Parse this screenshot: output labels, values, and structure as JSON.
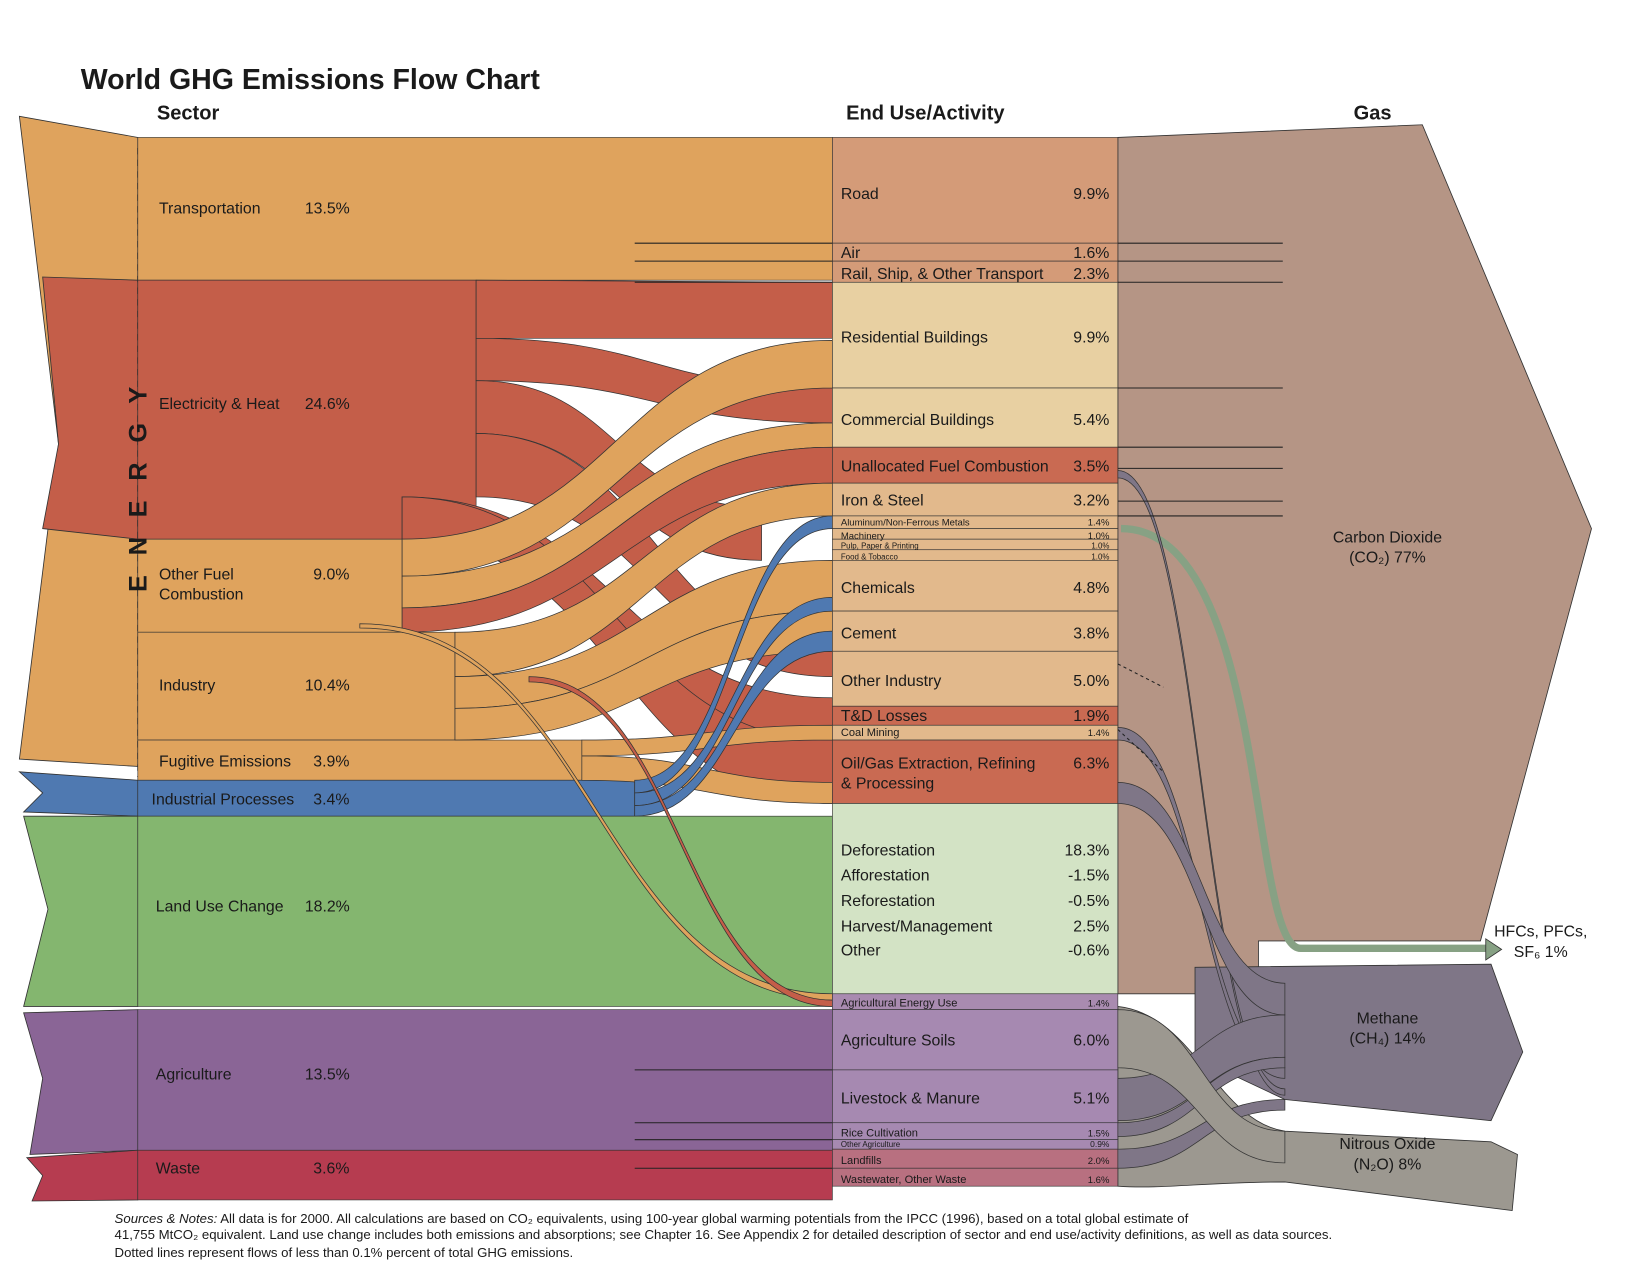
{
  "title": "World GHG Emissions Flow Chart",
  "headers": {
    "sector": "Sector",
    "end_use": "End Use/Activity",
    "gas": "Gas"
  },
  "energy_label": "E N E R G Y",
  "sectors": [
    {
      "name": "Transportation",
      "pct": "13.5%"
    },
    {
      "name": "Electricity & Heat",
      "pct": "24.6%"
    },
    {
      "name_line1": "Other Fuel",
      "name_line2": "Combustion",
      "pct": "9.0%"
    },
    {
      "name": "Industry",
      "pct": "10.4%"
    },
    {
      "name": "Fugitive Emissions",
      "pct": "3.9%"
    },
    {
      "name": "Industrial Processes",
      "pct": "3.4%"
    },
    {
      "name": "Land Use Change",
      "pct": "18.2%"
    },
    {
      "name": "Agriculture",
      "pct": "13.5%"
    },
    {
      "name": "Waste",
      "pct": "3.6%"
    }
  ],
  "end_uses": [
    {
      "name": "Road",
      "pct": "9.9%"
    },
    {
      "name": "Air",
      "pct": "1.6%"
    },
    {
      "name": "Rail, Ship, & Other Transport",
      "pct": "2.3%"
    },
    {
      "name": "Residential Buildings",
      "pct": "9.9%"
    },
    {
      "name": "Commercial Buildings",
      "pct": "5.4%"
    },
    {
      "name": "Unallocated Fuel Combustion",
      "pct": "3.5%"
    },
    {
      "name": "Iron & Steel",
      "pct": "3.2%"
    },
    {
      "name": "Aluminum/Non-Ferrous Metals",
      "pct": "1.4%"
    },
    {
      "name": "Machinery",
      "pct": "1.0%"
    },
    {
      "name": "Pulp, Paper & Printing",
      "pct": "1.0%"
    },
    {
      "name": "Food & Tobacco",
      "pct": "1.0%"
    },
    {
      "name": "Chemicals",
      "pct": "4.8%"
    },
    {
      "name": "Cement",
      "pct": "3.8%"
    },
    {
      "name": "Other Industry",
      "pct": "5.0%"
    },
    {
      "name": "T&D Losses",
      "pct": "1.9%"
    },
    {
      "name": "Coal Mining",
      "pct": "1.4%"
    },
    {
      "name_line1": "Oil/Gas Extraction, Refining",
      "name_line2": "& Processing",
      "pct": "6.3%"
    },
    {
      "name": "Deforestation",
      "pct": "18.3%"
    },
    {
      "name": "Afforestation",
      "pct": "-1.5%"
    },
    {
      "name": "Reforestation",
      "pct": "-0.5%"
    },
    {
      "name": "Harvest/Management",
      "pct": "2.5%"
    },
    {
      "name": "Other",
      "pct": "-0.6%"
    },
    {
      "name": "Agricultural Energy Use",
      "pct": "1.4%"
    },
    {
      "name": "Agriculture Soils",
      "pct": "6.0%"
    },
    {
      "name": "Livestock & Manure",
      "pct": "5.1%"
    },
    {
      "name": "Rice Cultivation",
      "pct": "1.5%"
    },
    {
      "name": "Other Agriculture",
      "pct": "0.9%"
    },
    {
      "name": "Landfills",
      "pct": "2.0%"
    },
    {
      "name": "Wastewater, Other Waste",
      "pct": "1.6%"
    }
  ],
  "gases": [
    {
      "line1": "Carbon Dioxide",
      "line2": "(CO₂)  77%"
    },
    {
      "line1": "HFCs, PFCs,",
      "line2": "SF₆  1%"
    },
    {
      "line1": "Methane",
      "line2": "(CH₄)  14%"
    },
    {
      "line1": "Nitrous Oxide",
      "line2": "(N₂O)  8%"
    }
  ],
  "notes": {
    "label": "Sources & Notes:",
    "line1": " All data is for 2000.  All calculations are based on CO₂ equivalents, using 100-year global warming potentials from the IPCC (1996), based on a total global estimate of",
    "line2": "41,755 MtCO₂ equivalent.  Land use change includes both emissions and absorptions; see Chapter 16.  See Appendix 2 for detailed description of sector and end use/activity definitions, as well as data sources.",
    "line3": "Dotted lines represent flows of less than 0.1% percent of total GHG emissions."
  },
  "colors": {
    "orange": "#DFA35D",
    "red": "#C45E49",
    "blue": "#4F79B1",
    "green": "#84B66F",
    "purple": "#8A6596",
    "waste": "#B63C50",
    "co2": "#B59585",
    "ch4": "#7F7687",
    "n2o": "#9C9890",
    "hfc": "#87A184"
  }
}
